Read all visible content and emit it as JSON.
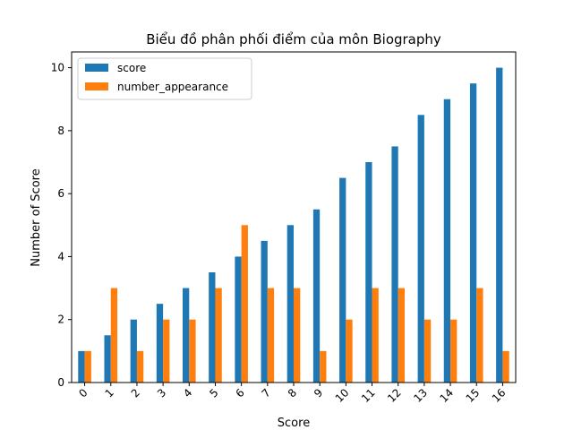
{
  "chart_data": {
    "type": "bar",
    "title": "Biểu đồ phân phối điểm của môn  Biography",
    "xlabel": "Score",
    "ylabel": "Number of Score",
    "categories": [
      "0",
      "1",
      "2",
      "3",
      "4",
      "5",
      "6",
      "7",
      "8",
      "9",
      "10",
      "11",
      "12",
      "13",
      "14",
      "15",
      "16"
    ],
    "series": [
      {
        "name": "score",
        "color": "#1f77b4",
        "values": [
          1,
          1.5,
          2,
          2.5,
          3,
          3.5,
          4,
          4.5,
          5,
          5.5,
          6.5,
          7,
          7.5,
          8.5,
          9,
          9.5,
          10
        ]
      },
      {
        "name": "number_appearance",
        "color": "#ff7f0e",
        "values": [
          1,
          3,
          1,
          2,
          2,
          3,
          5,
          3,
          3,
          1,
          2,
          3,
          3,
          2,
          2,
          3,
          1
        ]
      }
    ],
    "ylim": [
      0,
      10.5
    ],
    "yticks": [
      0,
      2,
      4,
      6,
      8,
      10
    ],
    "xtick_rotation": 45,
    "legend_position": "upper-left",
    "grid": false
  }
}
